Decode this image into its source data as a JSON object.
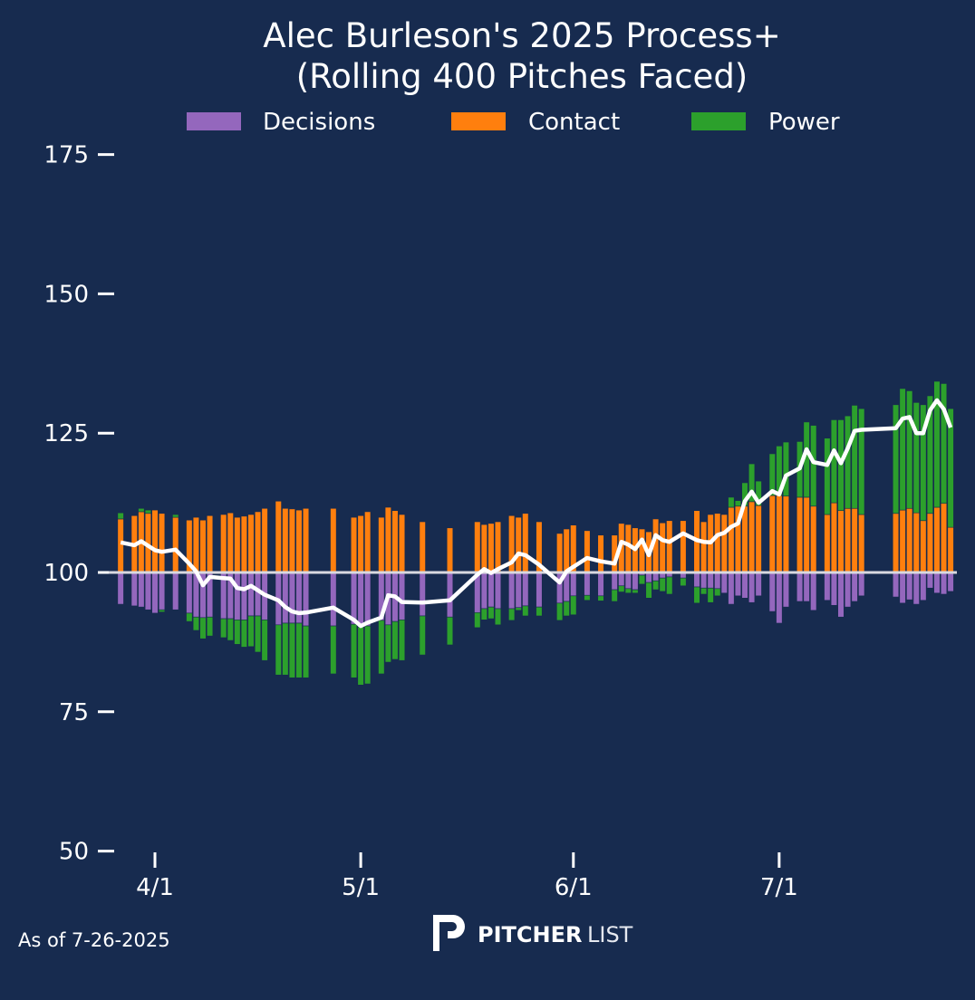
{
  "chart_data": {
    "type": "bar",
    "title_line1": "Alec Burleson's 2025 Process+",
    "title_line2": "(Rolling 400 Pitches Faced)",
    "x_unit": "days since 4/1",
    "xlim": [
      -6,
      118
    ],
    "ylim": [
      50,
      175
    ],
    "baseline": 100,
    "y_ticks": [
      50,
      75,
      100,
      125,
      150,
      175
    ],
    "x_ticks": [
      {
        "day": 0,
        "label": "4/1"
      },
      {
        "day": 30,
        "label": "5/1"
      },
      {
        "day": 61,
        "label": "6/1"
      },
      {
        "day": 91,
        "label": "7/1"
      }
    ],
    "legend_position": "top-center",
    "series": [
      {
        "name": "Decisions",
        "color": "#9467bd"
      },
      {
        "name": "Contact",
        "color": "#ff7f0e"
      },
      {
        "name": "Power",
        "color": "#2ca02c"
      }
    ],
    "line_color": "#ffffff",
    "bar_fields": [
      "day",
      "decisions",
      "contact",
      "power"
    ],
    "bars": [
      [
        -5,
        -5.7,
        9.6,
        1.1
      ],
      [
        -3,
        -6.0,
        10.2,
        0
      ],
      [
        -2,
        -6.2,
        10.9,
        0.6
      ],
      [
        -1,
        -6.7,
        10.6,
        0.6
      ],
      [
        0,
        -7.3,
        11.2,
        0
      ],
      [
        1,
        -6.7,
        10.6,
        -0.4
      ],
      [
        3,
        -6.7,
        9.9,
        0.5
      ],
      [
        5,
        -7.3,
        9.4,
        -1.5
      ],
      [
        6,
        -8.0,
        9.9,
        -2.4
      ],
      [
        7,
        -8.1,
        9.4,
        -3.8
      ],
      [
        8,
        -8.0,
        10.2,
        -3.4
      ],
      [
        10,
        -8.3,
        10.4,
        -3.4
      ],
      [
        11,
        -8.3,
        10.7,
        -3.9
      ],
      [
        12,
        -8.5,
        9.9,
        -4.4
      ],
      [
        13,
        -8.5,
        10.1,
        -4.9
      ],
      [
        14,
        -7.8,
        10.4,
        -5.5
      ],
      [
        15,
        -7.8,
        10.9,
        -6.5
      ],
      [
        16,
        -8.5,
        11.5,
        -7.3
      ],
      [
        18,
        -9.4,
        12.8,
        -9.0
      ],
      [
        19,
        -9.1,
        11.5,
        -9.3
      ],
      [
        20,
        -9.1,
        11.4,
        -9.8
      ],
      [
        21,
        -9.1,
        11.2,
        -9.8
      ],
      [
        22,
        -9.6,
        11.5,
        -9.3
      ],
      [
        26,
        -9.6,
        11.5,
        -8.6
      ],
      [
        29,
        -9.3,
        9.9,
        -9.6
      ],
      [
        30,
        -9.8,
        10.2,
        -10.4
      ],
      [
        31,
        -9.6,
        10.9,
        -10.4
      ],
      [
        33,
        -8.6,
        9.9,
        -9.6
      ],
      [
        34,
        -9.4,
        11.7,
        -6.7
      ],
      [
        35,
        -8.8,
        11.1,
        -6.8
      ],
      [
        36,
        -8.5,
        10.4,
        -7.3
      ],
      [
        39,
        -7.8,
        9.1,
        -7.0
      ],
      [
        43,
        -8.0,
        8.0,
        -5.0
      ],
      [
        47,
        -7.2,
        9.1,
        -2.7
      ],
      [
        48,
        -6.5,
        8.6,
        -2.0
      ],
      [
        49,
        -6.2,
        8.8,
        -2.1
      ],
      [
        50,
        -6.5,
        9.1,
        -2.9
      ],
      [
        52,
        -6.5,
        10.2,
        -2.1
      ],
      [
        53,
        -6.3,
        9.9,
        -0.5
      ],
      [
        54,
        -6.0,
        10.6,
        -1.8
      ],
      [
        56,
        -6.2,
        9.1,
        -1.6
      ],
      [
        59,
        -5.5,
        7.0,
        -3.1
      ],
      [
        60,
        -5.2,
        7.8,
        -2.6
      ],
      [
        61,
        -4.2,
        8.5,
        -3.4
      ],
      [
        63,
        -4.1,
        7.5,
        -0.9
      ],
      [
        65,
        -4.2,
        6.7,
        -0.9
      ],
      [
        67,
        -3.1,
        6.7,
        -2.1
      ],
      [
        68,
        -2.4,
        8.8,
        -1.1
      ],
      [
        69,
        -2.9,
        8.6,
        -0.8
      ],
      [
        70,
        -3.1,
        8.0,
        -0.6
      ],
      [
        71,
        -0.5,
        7.8,
        -1.6
      ],
      [
        72,
        -1.8,
        7.3,
        -2.8
      ],
      [
        73,
        -1.5,
        9.6,
        -1.6
      ],
      [
        74,
        -1.0,
        8.9,
        -2.4
      ],
      [
        75,
        -0.8,
        9.3,
        -3.1
      ],
      [
        77,
        -1.0,
        9.3,
        -1.4
      ],
      [
        79,
        -2.6,
        11.1,
        -2.9
      ],
      [
        80,
        -2.8,
        9.1,
        -1.1
      ],
      [
        81,
        -2.8,
        10.4,
        -2.6
      ],
      [
        82,
        -2.9,
        10.6,
        -1.3
      ],
      [
        83,
        -3.7,
        10.4,
        0
      ],
      [
        84,
        -5.7,
        11.7,
        1.8
      ],
      [
        85,
        -4.2,
        11.9,
        1.0
      ],
      [
        86,
        -4.6,
        11.9,
        4.2
      ],
      [
        87,
        -5.4,
        12.7,
        6.8
      ],
      [
        88,
        -4.2,
        12.0,
        4.4
      ],
      [
        90,
        -7.0,
        13.8,
        7.5
      ],
      [
        91,
        -9.1,
        13.8,
        8.9
      ],
      [
        92,
        -6.2,
        13.7,
        9.7
      ],
      [
        94,
        -5.2,
        13.5,
        10.0
      ],
      [
        95,
        -5.2,
        13.5,
        13.5
      ],
      [
        96,
        -6.8,
        11.9,
        14.5
      ],
      [
        98,
        -5.0,
        10.4,
        13.7
      ],
      [
        99,
        -5.9,
        12.5,
        14.9
      ],
      [
        100,
        -8.0,
        11.1,
        16.3
      ],
      [
        101,
        -6.2,
        11.5,
        16.6
      ],
      [
        102,
        -5.2,
        11.5,
        18.5
      ],
      [
        103,
        -4.2,
        10.4,
        19.0
      ],
      [
        108,
        -4.4,
        10.6,
        19.5
      ],
      [
        109,
        -5.5,
        11.2,
        21.8
      ],
      [
        110,
        -4.9,
        11.5,
        21.1
      ],
      [
        111,
        -5.7,
        10.7,
        19.8
      ],
      [
        112,
        -5.0,
        9.3,
        20.8
      ],
      [
        113,
        -2.8,
        10.6,
        21.1
      ],
      [
        114,
        -3.7,
        11.7,
        22.6
      ],
      [
        115,
        -3.9,
        12.4,
        21.5
      ],
      [
        116,
        -3.4,
        8.1,
        21.3
      ]
    ],
    "process_plus_line": [
      [
        -5,
        105.4
      ],
      [
        -3,
        104.9
      ],
      [
        -2,
        105.6
      ],
      [
        -1,
        104.8
      ],
      [
        0,
        104.0
      ],
      [
        1,
        103.7
      ],
      [
        3,
        104.1
      ],
      [
        5,
        101.6
      ],
      [
        6,
        100.2
      ],
      [
        7,
        97.7
      ],
      [
        8,
        99.2
      ],
      [
        10,
        99.0
      ],
      [
        11,
        98.9
      ],
      [
        12,
        97.2
      ],
      [
        13,
        97.0
      ],
      [
        14,
        97.6
      ],
      [
        15,
        96.8
      ],
      [
        16,
        96.0
      ],
      [
        18,
        95.0
      ],
      [
        19,
        93.8
      ],
      [
        20,
        93.0
      ],
      [
        21,
        92.7
      ],
      [
        22,
        92.8
      ],
      [
        26,
        93.7
      ],
      [
        29,
        91.5
      ],
      [
        30,
        90.4
      ],
      [
        31,
        91.0
      ],
      [
        33,
        91.9
      ],
      [
        34,
        95.9
      ],
      [
        35,
        95.7
      ],
      [
        36,
        94.7
      ],
      [
        39,
        94.6
      ],
      [
        43,
        95.0
      ],
      [
        47,
        99.6
      ],
      [
        48,
        100.6
      ],
      [
        49,
        99.9
      ],
      [
        50,
        100.6
      ],
      [
        52,
        101.8
      ],
      [
        53,
        103.4
      ],
      [
        54,
        103.1
      ],
      [
        56,
        101.4
      ],
      [
        59,
        98.2
      ],
      [
        60,
        100.2
      ],
      [
        61,
        101.0
      ],
      [
        63,
        102.6
      ],
      [
        65,
        102.0
      ],
      [
        67,
        101.6
      ],
      [
        68,
        105.5
      ],
      [
        69,
        105.0
      ],
      [
        70,
        104.2
      ],
      [
        71,
        105.9
      ],
      [
        72,
        103.1
      ],
      [
        73,
        106.7
      ],
      [
        74,
        105.8
      ],
      [
        75,
        105.5
      ],
      [
        77,
        107.0
      ],
      [
        79,
        105.8
      ],
      [
        80,
        105.5
      ],
      [
        81,
        105.4
      ],
      [
        82,
        106.7
      ],
      [
        83,
        107.1
      ],
      [
        84,
        108.2
      ],
      [
        85,
        108.8
      ],
      [
        86,
        112.8
      ],
      [
        87,
        114.5
      ],
      [
        88,
        112.5
      ],
      [
        90,
        114.6
      ],
      [
        91,
        114.0
      ],
      [
        92,
        117.4
      ],
      [
        94,
        118.7
      ],
      [
        95,
        122.1
      ],
      [
        96,
        119.8
      ],
      [
        98,
        119.3
      ],
      [
        99,
        121.9
      ],
      [
        100,
        119.6
      ],
      [
        101,
        122.3
      ],
      [
        102,
        125.4
      ],
      [
        103,
        125.6
      ],
      [
        108,
        125.9
      ],
      [
        109,
        127.6
      ],
      [
        110,
        127.9
      ],
      [
        111,
        125.0
      ],
      [
        112,
        125.0
      ],
      [
        113,
        129.1
      ],
      [
        114,
        130.9
      ],
      [
        115,
        129.3
      ],
      [
        116,
        126.0
      ]
    ]
  },
  "footer": {
    "as_of": "As of 7-26-2025",
    "logo_text_bold": "PITCHER",
    "logo_text_light": "LIST"
  }
}
